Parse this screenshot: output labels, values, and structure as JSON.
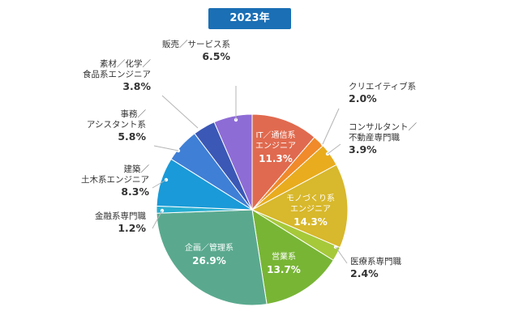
{
  "badge": {
    "label": "2023年",
    "color": "#1a6fb5"
  },
  "chart_data": {
    "type": "pie",
    "title": "",
    "unit": "%",
    "slices": [
      {
        "key": "it",
        "lines": [
          "IT／通信系",
          "エンジニア"
        ],
        "value": 11.3,
        "value_label": "11.3%",
        "color": "#e06a4f",
        "label_inside": true
      },
      {
        "key": "creative",
        "lines": [
          "クリエイティブ系"
        ],
        "value": 2.0,
        "value_label": "2.0%",
        "color": "#f08a2a",
        "label_inside": false
      },
      {
        "key": "consultant",
        "lines": [
          "コンサルタント／",
          "不動産専門職"
        ],
        "value": 3.9,
        "value_label": "3.9%",
        "color": "#e9ac1e",
        "label_inside": false
      },
      {
        "key": "monozukuri",
        "lines": [
          "モノづくり系",
          "エンジニア"
        ],
        "value": 14.3,
        "value_label": "14.3%",
        "color": "#d8b82c",
        "label_inside": true
      },
      {
        "key": "medical",
        "lines": [
          "医療系専門職"
        ],
        "value": 2.4,
        "value_label": "2.4%",
        "color": "#a6c93a",
        "label_inside": false
      },
      {
        "key": "sales",
        "lines": [
          "営業系"
        ],
        "value": 13.7,
        "value_label": "13.7%",
        "color": "#78b535",
        "label_inside": true
      },
      {
        "key": "planning",
        "lines": [
          "企画／管理系"
        ],
        "value": 26.9,
        "value_label": "26.9%",
        "color": "#5aa98f",
        "label_inside": true
      },
      {
        "key": "finance",
        "lines": [
          "金融系専門職"
        ],
        "value": 1.2,
        "value_label": "1.2%",
        "color": "#27aed0",
        "label_inside": false
      },
      {
        "key": "construction",
        "lines": [
          "建築／",
          "土木系エンジニア"
        ],
        "value": 8.3,
        "value_label": "8.3%",
        "color": "#1a9ad8",
        "label_inside": false
      },
      {
        "key": "office",
        "lines": [
          "事務／",
          "アシスタント系"
        ],
        "value": 5.8,
        "value_label": "5.8%",
        "color": "#3f7fd6",
        "label_inside": false
      },
      {
        "key": "materials",
        "lines": [
          "素材／化学／",
          "食品系エンジニア"
        ],
        "value": 3.8,
        "value_label": "3.8%",
        "color": "#3b58b6",
        "label_inside": false
      },
      {
        "key": "retail",
        "lines": [
          "販売／サービス系"
        ],
        "value": 6.5,
        "value_label": "6.5%",
        "color": "#8e6cd6",
        "label_inside": false
      }
    ]
  }
}
